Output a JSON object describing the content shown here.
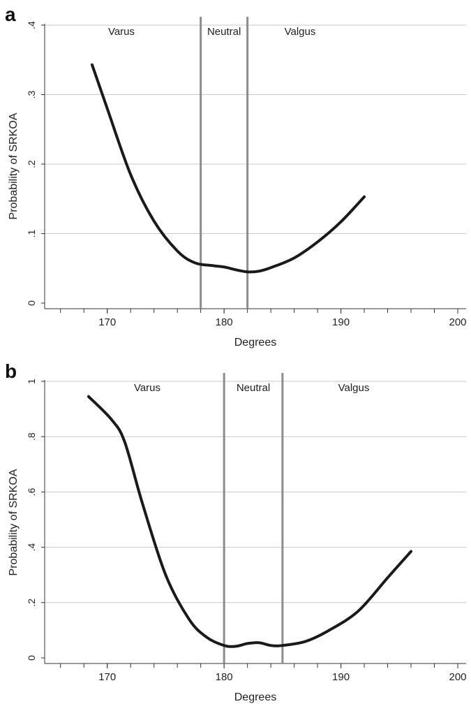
{
  "chart_data": [
    {
      "panel_label": "a",
      "type": "line",
      "xlabel": "Degrees",
      "ylabel": "Probability of SRKOA",
      "xlim": [
        165,
        200
      ],
      "ylim": [
        0,
        0.4
      ],
      "x_ticks": [
        170,
        180,
        190,
        200
      ],
      "y_ticks": [
        0,
        0.1,
        0.2,
        0.3,
        0.4
      ],
      "y_tick_labels": [
        "0",
        ".1",
        ".2",
        ".3",
        ".4"
      ],
      "grid": "horizontal",
      "vertical_lines": [
        178,
        182
      ],
      "region_labels": [
        "Varus",
        "Neutral",
        "Valgus"
      ],
      "series": [
        {
          "x": [
            168.7,
            170,
            172,
            174,
            176,
            177.5,
            179,
            180,
            181,
            182,
            183,
            184,
            186,
            188,
            190,
            192
          ],
          "y": [
            0.343,
            0.28,
            0.185,
            0.118,
            0.075,
            0.058,
            0.054,
            0.052,
            0.048,
            0.045,
            0.046,
            0.051,
            0.065,
            0.088,
            0.117,
            0.153
          ]
        }
      ]
    },
    {
      "panel_label": "b",
      "type": "line",
      "xlabel": "Degrees",
      "ylabel": "Probability of SRKOA",
      "xlim": [
        165,
        200
      ],
      "ylim": [
        0,
        1
      ],
      "x_ticks": [
        170,
        180,
        190,
        200
      ],
      "y_ticks": [
        0,
        0.2,
        0.4,
        0.6,
        0.8,
        1
      ],
      "y_tick_labels": [
        "0",
        ".2",
        ".4",
        ".6",
        ".8",
        "1"
      ],
      "grid": "horizontal",
      "vertical_lines": [
        180,
        185
      ],
      "region_labels": [
        "Varus",
        "Neutral",
        "Valgus"
      ],
      "series": [
        {
          "x": [
            168.4,
            170.4,
            171.5,
            173,
            175,
            177,
            178.5,
            180,
            181,
            182,
            183,
            184,
            185,
            187,
            189,
            191.5,
            194,
            196
          ],
          "y": [
            0.945,
            0.86,
            0.78,
            0.56,
            0.3,
            0.14,
            0.075,
            0.045,
            0.042,
            0.052,
            0.055,
            0.045,
            0.045,
            0.06,
            0.1,
            0.17,
            0.29,
            0.385
          ]
        }
      ]
    }
  ]
}
